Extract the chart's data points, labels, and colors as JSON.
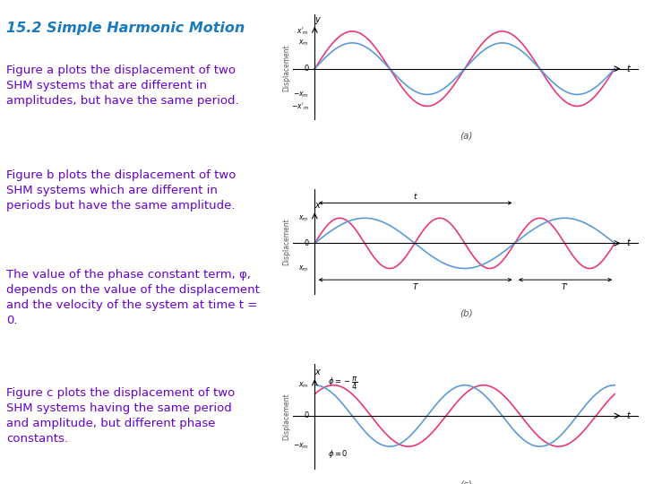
{
  "title": "15.2 Simple Harmonic Motion",
  "title_color": "#1a7abf",
  "text_color": "#6600cc",
  "bg_color": "#ffffff",
  "paragraphs": [
    "Figure a plots the displacement of two\nSHM systems that are different in\namplitudes, but have the same period.",
    "Figure b plots the displacement of two\nSHM systems which are different in\nperiods but have the same amplitude.",
    "The value of the phase constant term, φ,\ndepends on the value of the displacement\nand the velocity of the system at time t =\n0.",
    "Figure c plots the displacement of two\nSHM systems having the same period\nand amplitude, but different phase\nconstants."
  ],
  "pink_color": "#e8387a",
  "blue_color": "#5b9bd5",
  "label_color": "#555555"
}
